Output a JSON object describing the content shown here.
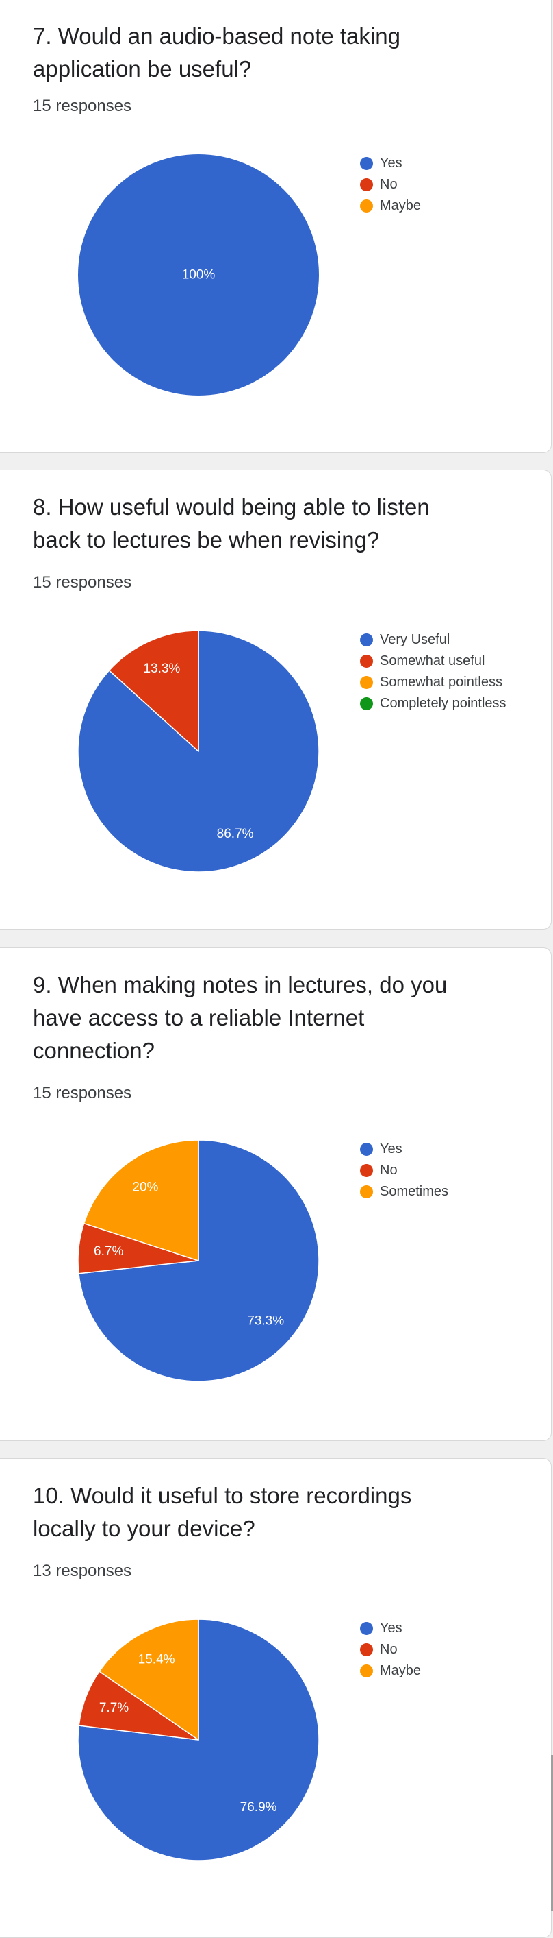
{
  "colors": {
    "blue": "#3366cc",
    "red": "#dc3912",
    "orange": "#ff9900",
    "green": "#109618"
  },
  "questions": [
    {
      "title": "7. Would an audio-based note taking application be useful?",
      "responses": "15 responses",
      "legend": [
        "Yes",
        "No",
        "Maybe"
      ]
    },
    {
      "title": "8. How useful would being able to listen back to lectures be when revising?",
      "responses": "15 responses",
      "legend": [
        "Very Useful",
        "Somewhat useful",
        "Somewhat pointless",
        "Completely pointless"
      ]
    },
    {
      "title": "9. When making notes in lectures, do you have access to a reliable Internet connection?",
      "responses": "15 responses",
      "legend": [
        "Yes",
        "No",
        "Sometimes"
      ]
    },
    {
      "title": "10. Would it useful to store recordings locally to your device?",
      "responses": "13 responses",
      "legend": [
        "Yes",
        "No",
        "Maybe"
      ]
    }
  ],
  "chart_data": [
    {
      "type": "pie",
      "title": "7. Would an audio-based note taking application be useful?",
      "categories": [
        "Yes",
        "No",
        "Maybe"
      ],
      "values": [
        100,
        0,
        0
      ],
      "labels": [
        "100%",
        "",
        ""
      ],
      "colors": [
        "#3366cc",
        "#dc3912",
        "#ff9900"
      ],
      "legend_position": "right"
    },
    {
      "type": "pie",
      "title": "8. How useful would being able to listen back to lectures be when revising?",
      "categories": [
        "Very Useful",
        "Somewhat useful",
        "Somewhat pointless",
        "Completely pointless"
      ],
      "values": [
        86.7,
        13.3,
        0,
        0
      ],
      "labels": [
        "86.7%",
        "13.3%",
        "",
        ""
      ],
      "colors": [
        "#3366cc",
        "#dc3912",
        "#ff9900",
        "#109618"
      ],
      "legend_position": "right"
    },
    {
      "type": "pie",
      "title": "9. When making notes in lectures, do you have access to a reliable Internet connection?",
      "categories": [
        "Yes",
        "No",
        "Sometimes"
      ],
      "values": [
        73.3,
        6.7,
        20
      ],
      "labels": [
        "73.3%",
        "6.7%",
        "20%"
      ],
      "colors": [
        "#3366cc",
        "#dc3912",
        "#ff9900"
      ],
      "legend_position": "right"
    },
    {
      "type": "pie",
      "title": "10. Would it useful to store recordings locally to your device?",
      "categories": [
        "Yes",
        "No",
        "Maybe"
      ],
      "values": [
        76.9,
        7.7,
        15.4
      ],
      "labels": [
        "76.9%",
        "7.7%",
        "15.4%"
      ],
      "colors": [
        "#3366cc",
        "#dc3912",
        "#ff9900"
      ],
      "legend_position": "right"
    }
  ]
}
